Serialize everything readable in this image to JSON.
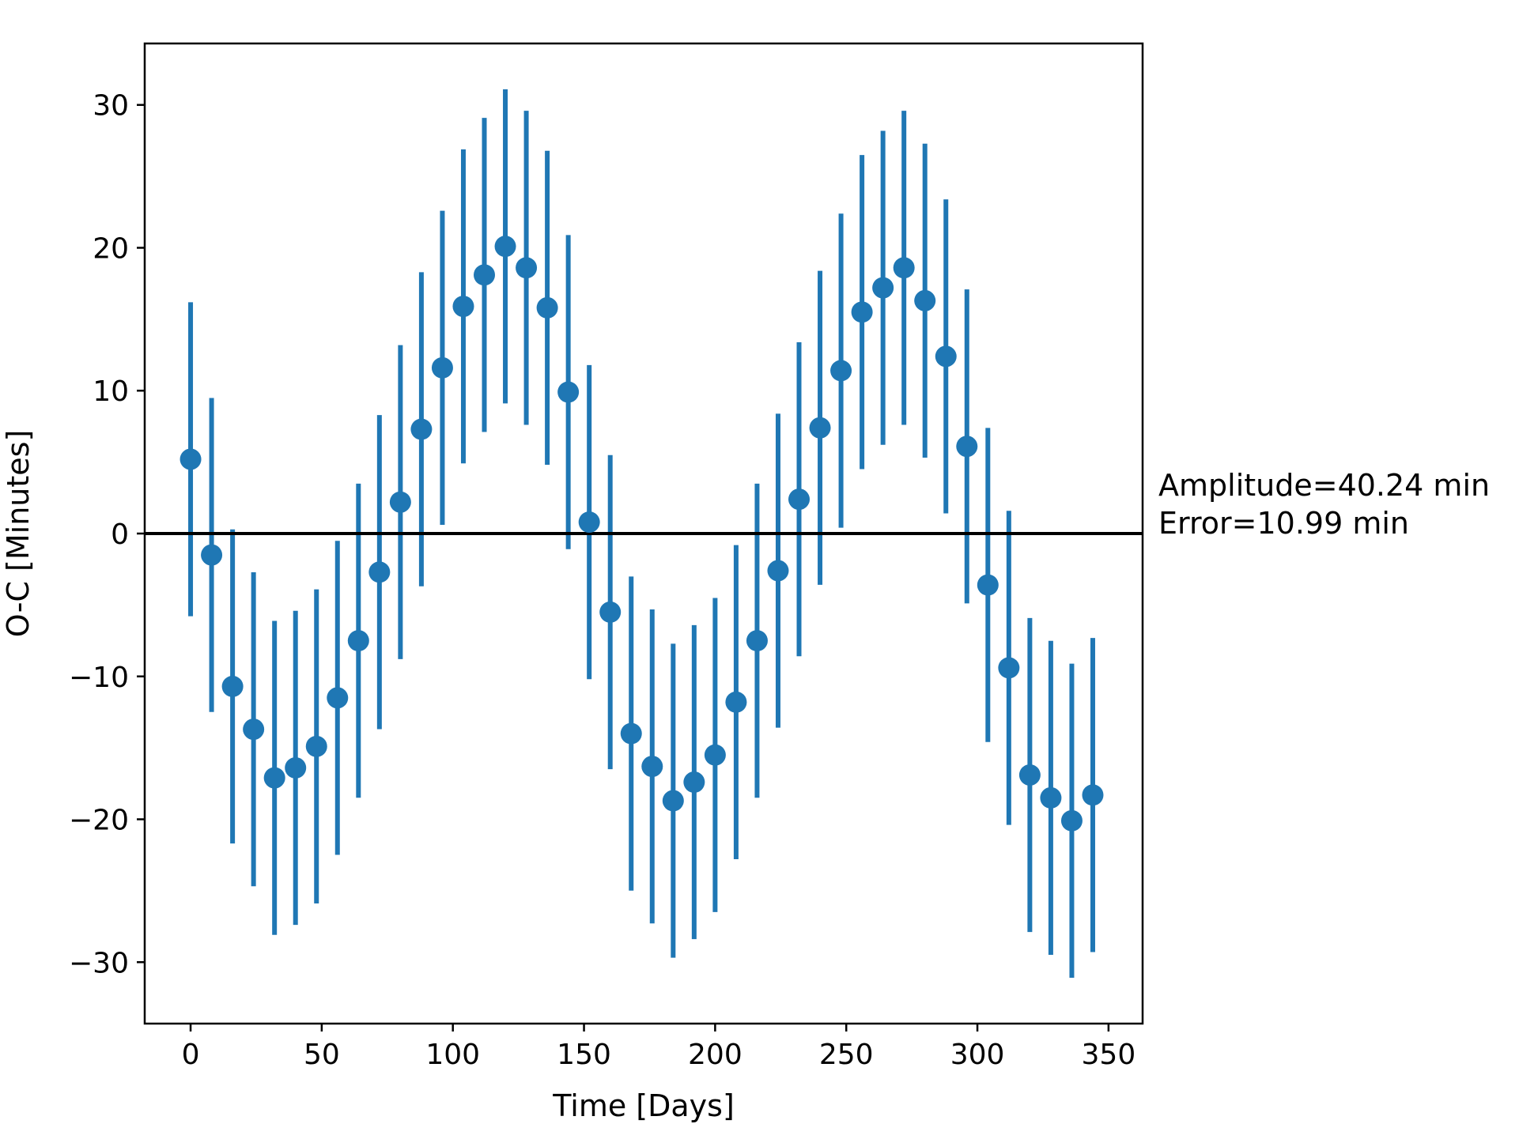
{
  "chart_data": {
    "type": "scatter",
    "xlabel": "Time [Days]",
    "ylabel": "O-C [Minutes]",
    "xlim": [
      -17.5,
      363
    ],
    "ylim": [
      -34.3,
      34.3
    ],
    "xticks": [
      0,
      50,
      100,
      150,
      200,
      250,
      300,
      350
    ],
    "yticks": [
      -30,
      -20,
      -10,
      0,
      10,
      20,
      30
    ],
    "xtick_labels": [
      "0",
      "50",
      "100",
      "150",
      "200",
      "250",
      "300",
      "350"
    ],
    "ytick_labels": [
      "−30",
      "−20",
      "−10",
      "0",
      "10",
      "20",
      "30"
    ],
    "grid": false,
    "reference_line": {
      "y": 0,
      "color": "#000000"
    },
    "annotations": [
      "Amplitude=40.24 min",
      "Error=10.99 min"
    ],
    "series": [
      {
        "color": "#1f77b4",
        "error": 10.99,
        "x": [
          0,
          8,
          16,
          24,
          32,
          40,
          48,
          56,
          64,
          72,
          80,
          88,
          96,
          104,
          112,
          120,
          128,
          136,
          144,
          152,
          160,
          168,
          176,
          184,
          192,
          200,
          208,
          216,
          224,
          232,
          240,
          248,
          256,
          264,
          272,
          280,
          288,
          296,
          304,
          312,
          320,
          328,
          336,
          344
        ],
        "y": [
          5.2,
          -1.5,
          -10.7,
          -13.7,
          -17.1,
          -16.4,
          -14.9,
          -11.5,
          -7.5,
          -2.7,
          2.2,
          7.3,
          11.6,
          15.9,
          18.1,
          20.1,
          18.6,
          15.8,
          9.9,
          0.8,
          -5.5,
          -14.0,
          -16.3,
          -18.7,
          -17.4,
          -15.5,
          -11.8,
          -7.5,
          -2.6,
          2.4,
          7.4,
          11.4,
          15.5,
          17.2,
          18.6,
          16.3,
          12.4,
          6.1,
          -3.6,
          -9.4,
          -16.9,
          -18.5,
          -20.1,
          -18.3
        ]
      }
    ]
  }
}
